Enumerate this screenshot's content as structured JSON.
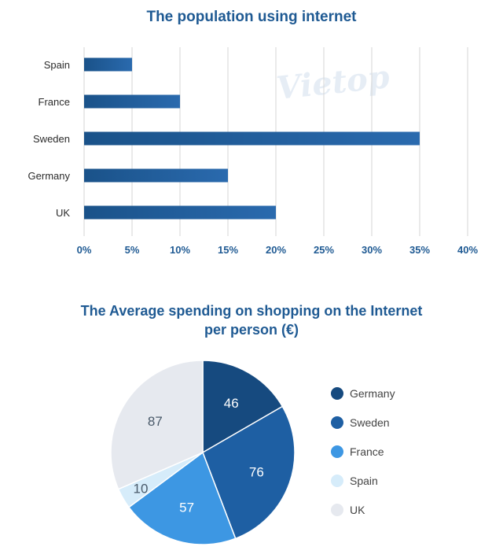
{
  "chart_data": [
    {
      "type": "bar",
      "orientation": "horizontal",
      "title": "The population using internet",
      "categories": [
        "Spain",
        "France",
        "Sweden",
        "Germany",
        "UK"
      ],
      "values": [
        5,
        10,
        35,
        15,
        20
      ],
      "unit": "%",
      "xlim": [
        0,
        40
      ],
      "xticks": [
        "0%",
        "5%",
        "10%",
        "15%",
        "20%",
        "25%",
        "30%",
        "35%",
        "40%"
      ],
      "grid": "vertical",
      "color": "#1f5a93"
    },
    {
      "type": "pie",
      "title_lines": [
        "The Average spending on shopping on the Internet",
        "per person (€)"
      ],
      "categories": [
        "Germany",
        "Sweden",
        "France",
        "Spain",
        "UK"
      ],
      "values": [
        46,
        76,
        57,
        10,
        87
      ],
      "colors": [
        "#164a7f",
        "#1e5fa3",
        "#3d97e3",
        "#d6ecfa",
        "#e6e9ef"
      ],
      "label_colors": [
        "#ffffff",
        "#ffffff",
        "#ffffff",
        "#4a5a6a",
        "#4a5a6a"
      ],
      "legend_position": "right"
    }
  ],
  "watermark": "Vietop"
}
